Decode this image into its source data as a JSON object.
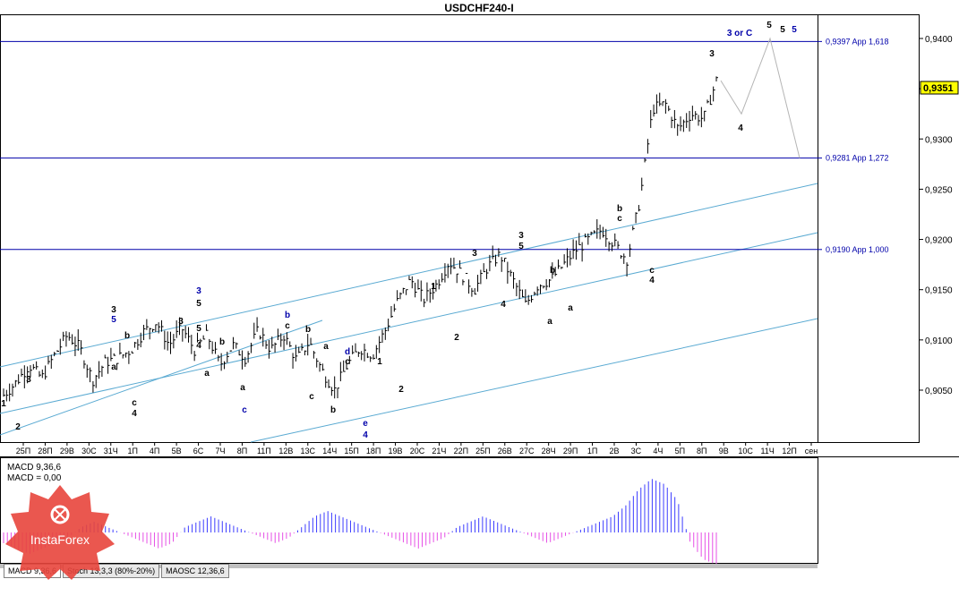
{
  "window": {
    "title": "USDCHF240-I"
  },
  "colors": {
    "grid": "#000000",
    "target_line": "#0000aa",
    "channel": "#5aaad2",
    "projection": "#b4b4b4",
    "macd_pos": "#3c3cff",
    "macd_neg": "#e650e6",
    "price_bar": "#000000"
  },
  "chart_data": [
    {
      "type": "line",
      "title": "USDCHF240-I",
      "ylim": [
        0.9,
        0.94
      ],
      "y_ticks": [
        "0,9400",
        "0,9350",
        "0,9300",
        "0,9250",
        "0,9200",
        "0,9150",
        "0,9100",
        "0,9050"
      ],
      "x_tick_labels": [
        "25П",
        "28П",
        "29В",
        "30С",
        "31Ч",
        "1П",
        "4П",
        "5В",
        "6С",
        "7Ч",
        "8П",
        "11П",
        "12В",
        "13С",
        "14Ч",
        "15П",
        "18П",
        "19В",
        "20С",
        "21Ч",
        "22П",
        "25П",
        "26В",
        "27С",
        "28Ч",
        "29П",
        "1П",
        "2В",
        "3С",
        "4Ч",
        "5П",
        "8П",
        "9В",
        "10С",
        "11Ч",
        "12П",
        "сен"
      ],
      "current_price": "0,9351",
      "target_lines": [
        {
          "value": 0.9397,
          "label": "0,9397 App 1,618"
        },
        {
          "value": 0.9281,
          "label": "0,9281 App 1,272"
        },
        {
          "value": 0.919,
          "label": "0,9190 App 1,000"
        }
      ],
      "price_path": [
        0.9045,
        0.9058,
        0.9075,
        0.9062,
        0.9085,
        0.9105,
        0.9092,
        0.906,
        0.9078,
        0.9082,
        0.909,
        0.9108,
        0.9118,
        0.9095,
        0.9112,
        0.909,
        0.9105,
        0.9075,
        0.9095,
        0.9082,
        0.911,
        0.909,
        0.9105,
        0.908,
        0.9098,
        0.907,
        0.905,
        0.9075,
        0.9092,
        0.9085,
        0.911,
        0.914,
        0.916,
        0.914,
        0.9155,
        0.9178,
        0.9165,
        0.915,
        0.9172,
        0.9185,
        0.916,
        0.9135,
        0.9155,
        0.916,
        0.9175,
        0.919,
        0.92,
        0.921,
        0.9195,
        0.918,
        0.924,
        0.933,
        0.9335,
        0.931,
        0.9325,
        0.932,
        0.9358
      ],
      "projection_path": [
        0.9358,
        0.9325,
        0.94,
        0.9281
      ],
      "wave_labels": [
        "1",
        "2",
        "3",
        "3",
        "5",
        "a",
        "b",
        "c",
        "4",
        "3",
        "5",
        "a",
        "4",
        "3",
        "5",
        "a",
        "c",
        "b",
        "b",
        "c",
        "b",
        "a",
        "c",
        "b",
        "d",
        "c",
        "e",
        "4",
        "1",
        "2",
        "1",
        "2",
        "3",
        "4",
        "3",
        "5",
        "a",
        "b",
        "a",
        "b",
        "c",
        "c",
        "4",
        "3",
        "4",
        "5",
        "3 or C",
        "5",
        "5"
      ]
    },
    {
      "type": "bar",
      "title": "MACD 9,36,6",
      "series_labels": [
        "MACD 9,36,6",
        "MACD = 0,00"
      ],
      "values": [
        -2,
        -3,
        -4,
        -3,
        -2,
        -1,
        1,
        2,
        1,
        0,
        -1,
        -2,
        -3,
        -2,
        1,
        2,
        3,
        2,
        1,
        0,
        -1,
        -2,
        -1,
        1,
        3,
        4,
        3,
        2,
        1,
        0,
        -1,
        -2,
        -3,
        -2,
        -1,
        1,
        2,
        3,
        2,
        1,
        0,
        -1,
        -2,
        -1,
        0,
        1,
        2,
        3,
        5,
        8,
        10,
        9,
        6,
        -2,
        -5,
        -6
      ]
    }
  ],
  "tabs": [
    "MACD 9,36,6",
    "Stoch 13,3,3 (80%-20%)",
    "MAOSC 12,36,6"
  ],
  "logo": {
    "name": "InstaForex"
  }
}
